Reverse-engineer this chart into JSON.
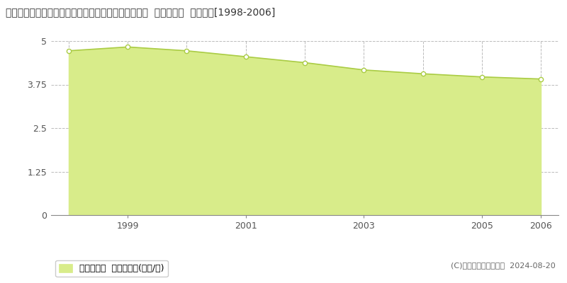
{
  "title": "群馬県利根郡川場村大字立岩字清水１０３番１外の内  基準地価格  地価推移[1998-2006]",
  "years": [
    1998,
    1999,
    2000,
    2001,
    2002,
    2003,
    2004,
    2005,
    2006
  ],
  "values": [
    4.72,
    4.83,
    4.72,
    4.55,
    4.38,
    4.17,
    4.06,
    3.97,
    3.91
  ],
  "ylim": [
    0,
    5
  ],
  "yticks": [
    0,
    1.25,
    2.5,
    3.75,
    5
  ],
  "ytick_labels": [
    "0",
    "1.25",
    "2.5",
    "3.75",
    "5"
  ],
  "xticks": [
    1999,
    2001,
    2003,
    2005,
    2006
  ],
  "line_color": "#aacc44",
  "fill_color": "#d8ec8a",
  "fill_alpha": 1.0,
  "marker_color": "white",
  "marker_edge_color": "#aacc44",
  "bg_color": "#ffffff",
  "grid_color": "#aaaaaa",
  "legend_label": "基準地価格  平均坪単価(万円/坪)",
  "copyright_text": "(C)土地価格ドットコム  2024-08-20",
  "title_fontsize": 10,
  "axis_fontsize": 9,
  "legend_fontsize": 9
}
